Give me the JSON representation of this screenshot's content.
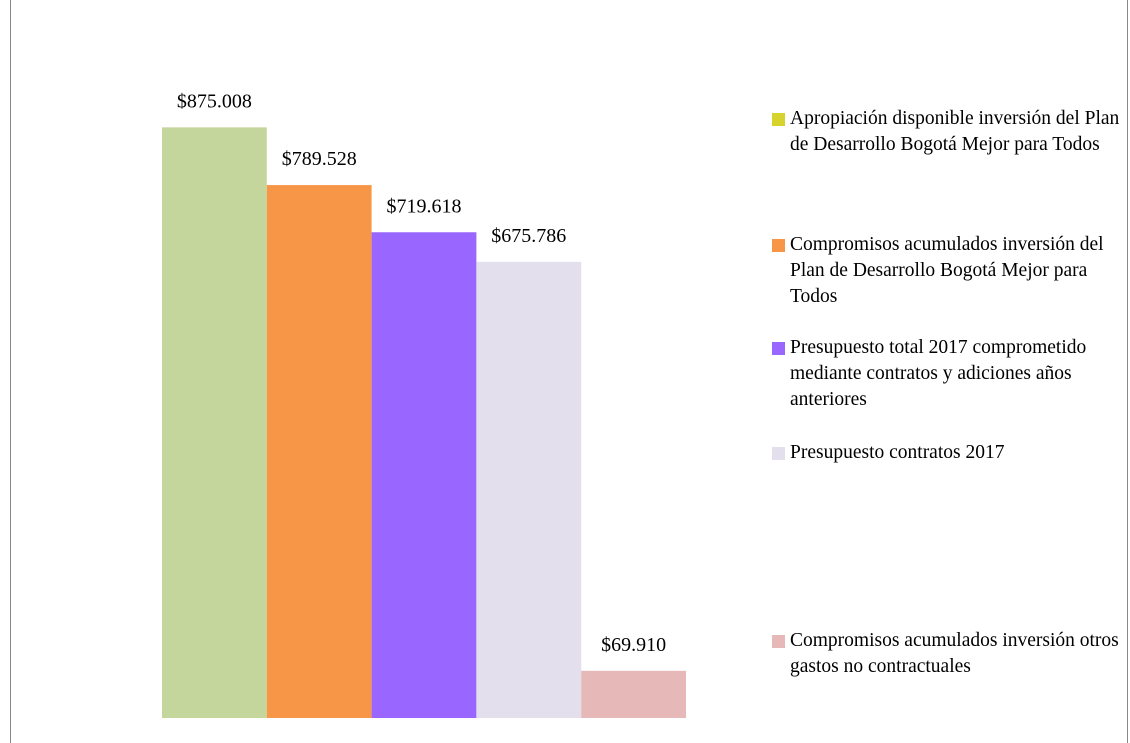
{
  "chart_data": {
    "type": "bar",
    "series": [
      {
        "name": "Apropiación disponible inversión del Plan de Desarrollo Bogotá Mejor para Todos",
        "color": "#c4d69b",
        "legend_color": "#d6d42c",
        "values": [
          875008
        ],
        "value_labels": [
          "$875.008"
        ]
      },
      {
        "name": "Compromisos acumulados inversión del Plan de Desarrollo Bogotá Mejor para Todos",
        "color": "#f79646",
        "values": [
          789528
        ],
        "value_labels": [
          "$789.528"
        ]
      },
      {
        "name": "Presupuesto total 2017 comprometido mediante contratos y adiciones años anteriores",
        "color": "#9966ff",
        "values": [
          719618
        ],
        "value_labels": [
          "$719.618"
        ]
      },
      {
        "name": "Presupuesto contratos 2017",
        "color": "#e4dfec",
        "values": [
          675786
        ],
        "value_labels": [
          "$675.786"
        ]
      },
      {
        "name": "Compromisos acumulados inversión otros gastos no contractuales",
        "color": "#e6b8b7",
        "values": [
          69910
        ],
        "value_labels": [
          "$69.910"
        ]
      }
    ],
    "ylim": [
      0,
      1000000
    ]
  }
}
